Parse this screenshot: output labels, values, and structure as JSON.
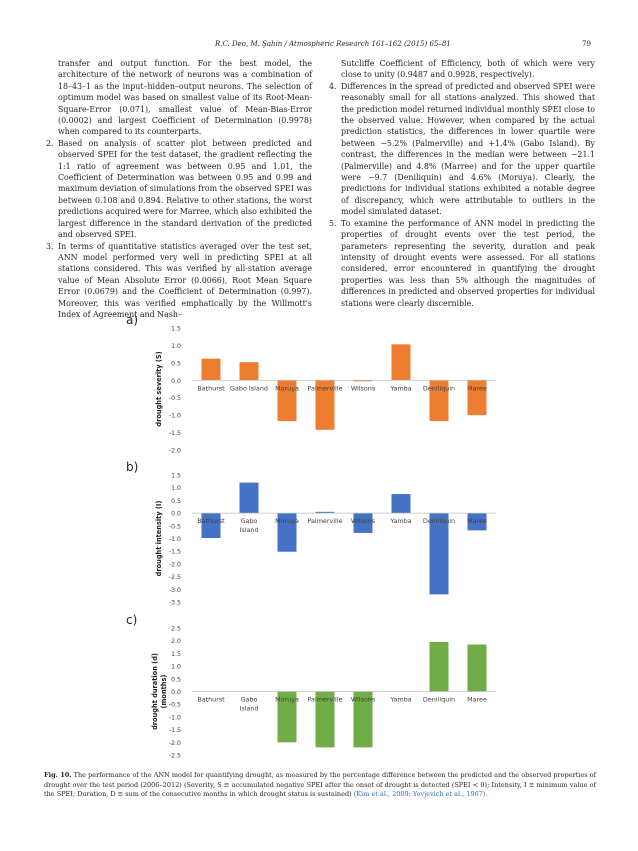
{
  "header": {
    "running_head": "R.C. Deo, M. Şahin / Atmospheric Research 161–162 (2015) 65–81",
    "page_number": "79"
  },
  "left_column": {
    "intro": "transfer and output function. For the best model, the architecture of the network of neurons was a combination of 18–43–1 as the input–hidden–output neurons. The selection of optimum model was based on smallest value of its Root-Mean-Square-Error (0.071), smallest value of Mean-Bias-Error (0.0002) and largest Coefficient of Determination (0.9978) when compared to its counterparts.",
    "items": [
      {
        "num": "2.",
        "text": "Based on analysis of scatter plot between predicted and observed SPEI for the test dataset, the gradient reflecting the 1:1 ratio of agreement was between 0.95 and 1.01, the Coefficient of Determination was between 0.95 and 0.99 and maximum deviation of simulations from the observed SPEI was between 0.108 and 0.894. Relative to other stations, the worst predictions acquired were for Marree, which also exhibited the largest difference in the standard derivation of the predicted and observed SPEI."
      },
      {
        "num": "3.",
        "text": "In terms of quantitative statistics averaged over the test set, ANN model performed very well in predicting SPEI at all stations considered. This was verified by all-station average value of Mean Absolute Error (0.0066), Root Mean Square Error (0.0679) and the Coefficient of Determination (0.997). Moreover, this was verified emphatically by the Willmott's Index of Agreement and Nash–"
      }
    ]
  },
  "right_column": {
    "continuation": "Sutcliffe Coefficient of Efficiency, both of which were very close to unity (0.9487 and 0.9928, respectively).",
    "items": [
      {
        "num": "4.",
        "text": "Differences in the spread of predicted and observed SPEI were reasonably small for all stations analyzed. This showed that the prediction model returned individual monthly SPEI close to the observed value. However, when compared by the actual prediction statistics, the differences in lower quartile were between −5.2% (Palmerville) and +1.4% (Gabo Island). By contrast, the differences in the median were between −21.1 (Palmerville) and 4.8% (Marree) and for the upper quartile were −9.7 (Deniliquin) and 4.6% (Moruya). Clearly, the predictions for individual stations exhibited a notable degree of discrepancy, which were attributable to outliers in the model simulated dataset."
      },
      {
        "num": "5.",
        "text": "To examine the performance of ANN model in predicting the properties of drought events over the test period, the parameters representing the severity, duration and peak intensity of drought events were assessed. For all stations considered, error encountered in quantifying the drought properties was less than 5% although the magnitudes of differences in predicted and observed properties for individual stations were clearly discernible."
      }
    ]
  },
  "figure": {
    "caption_label": "Fig. 10.",
    "caption_text": "The performance of the ANN model for quantifying drought, as measured by the percentage difference between the predicted and the observed properties of drought over the test period (2006–2012) (Severity, S ≡ accumulated negative SPEI after the onset of drought is detected (SPEI < 0); Intensity, I ≡ minimum value of the SPEI; Duration, D ≡ sum of the consecutive months in which drought status is sustained)",
    "caption_cite": "(Kim et al., 2009; Yevjevich et al., 1967)."
  },
  "chart_data": [
    {
      "type": "bar",
      "panel_label": "a)",
      "ylabel": "drought severity (S)",
      "ylim": [
        -2.0,
        1.5
      ],
      "yticks": [
        "1.5",
        "1.0",
        "0.5",
        "0.0",
        "-0.5",
        "-1.0",
        "-1.5",
        "-2.0"
      ],
      "categories": [
        "Bathurst",
        "Gabo Island",
        "Moruya",
        "Palmerville",
        "Wilsons",
        "Yamba",
        "Deniliquin",
        "Maree"
      ],
      "values": [
        0.62,
        0.52,
        -1.17,
        -1.42,
        -0.03,
        1.03,
        -1.17,
        -1.0
      ],
      "color": "#ed7d31"
    },
    {
      "type": "bar",
      "panel_label": "b)",
      "ylabel": "drought intensity (I)",
      "ylim": [
        -3.5,
        1.5
      ],
      "yticks": [
        "1.5",
        "1.0",
        "0.5",
        "0.0",
        "-0.5",
        "-1.0",
        "-1.5",
        "-2.0",
        "-2.5",
        "-3.0",
        "-3.5"
      ],
      "categories": [
        "Bathurst",
        "Gabo Island",
        "Moruya",
        "Palmerville",
        "Wilsons",
        "Yamba",
        "Deniliquin",
        "Maree"
      ],
      "values": [
        -0.98,
        1.2,
        -1.52,
        0.05,
        -0.78,
        0.75,
        -3.2,
        -0.68
      ],
      "color": "#4472c4"
    },
    {
      "type": "bar",
      "panel_label": "c)",
      "ylabel": "drought duration (d) (months)",
      "ylim": [
        -2.5,
        2.5
      ],
      "yticks": [
        "2.5",
        "2.0",
        "1.5",
        "1.0",
        "0.5",
        "0.0",
        "-0.5",
        "-1.0",
        "-1.5",
        "-2.0",
        "-2.5"
      ],
      "categories": [
        "Bathurst",
        "Gabo Island",
        "Moruya",
        "Palmerville",
        "Wilsons",
        "Yamba",
        "Deniliquin",
        "Maree"
      ],
      "values": [
        0,
        0,
        -2.0,
        -2.2,
        -2.2,
        0,
        1.95,
        1.85
      ],
      "color": "#70ad47"
    }
  ]
}
